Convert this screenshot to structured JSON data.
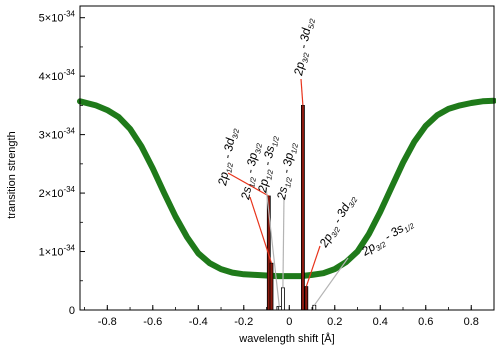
{
  "chart_data": {
    "type": "bar",
    "xlabel": "wavelength shift [Å]",
    "ylabel": "transition strength",
    "xlim": [
      -0.92,
      0.9
    ],
    "ylim": [
      0,
      5.2e-34
    ],
    "x_ticks": [
      -0.8,
      -0.6,
      -0.4,
      -0.2,
      0,
      0.2,
      0.4,
      0.6,
      0.8
    ],
    "x_tick_labels": [
      "-0.8",
      "-0.6",
      "-0.4",
      "-0.2",
      "0",
      "0.2",
      "0.4",
      "0.6",
      "0.8"
    ],
    "y_ticks": [
      0,
      1e-34,
      2e-34,
      3e-34,
      4e-34,
      5e-34
    ],
    "y_tick_labels": [
      {
        "mant": "0",
        "exp": ""
      },
      {
        "mant": "1×10",
        "exp": "-34"
      },
      {
        "mant": "2×10",
        "exp": "-34"
      },
      {
        "mant": "3×10",
        "exp": "-34"
      },
      {
        "mant": "4×10",
        "exp": "-34"
      },
      {
        "mant": "5×10",
        "exp": "-34"
      }
    ],
    "grid": false,
    "bars": [
      {
        "x": -0.09,
        "value": 1.95e-34,
        "color": "#8b1a0f"
      },
      {
        "x": -0.078,
        "value": 8e-35,
        "color": "#8b1a0f"
      },
      {
        "x": -0.048,
        "value": 6e-36,
        "color": "#ffffff"
      },
      {
        "x": -0.04,
        "value": 6e-36,
        "color": "#ffffff"
      },
      {
        "x": -0.028,
        "value": 3.8e-35,
        "color": "#ffffff"
      },
      {
        "x": 0.06,
        "value": 3.5e-34,
        "color": "#8b1a0f"
      },
      {
        "x": 0.075,
        "value": 4e-35,
        "color": "#8b1a0f"
      },
      {
        "x": 0.11,
        "value": 8e-36,
        "color": "#ffffff"
      }
    ],
    "envelope": {
      "color": "#1f7a1a",
      "x": [
        -0.92,
        -0.85,
        -0.8,
        -0.75,
        -0.7,
        -0.65,
        -0.6,
        -0.55,
        -0.5,
        -0.45,
        -0.4,
        -0.35,
        -0.3,
        -0.25,
        -0.2,
        -0.15,
        -0.1,
        -0.05,
        0.0,
        0.05,
        0.1,
        0.15,
        0.2,
        0.25,
        0.3,
        0.35,
        0.4,
        0.45,
        0.5,
        0.55,
        0.6,
        0.65,
        0.7,
        0.75,
        0.8,
        0.85,
        0.9
      ],
      "y": [
        3.57e-34,
        3.5e-34,
        3.42e-34,
        3.3e-34,
        3.1e-34,
        2.8e-34,
        2.42e-34,
        2e-34,
        1.6e-34,
        1.25e-34,
        9.7e-35,
        8e-35,
        7e-35,
        6.4e-35,
        6.1e-35,
        6e-35,
        5.9e-35,
        5.8e-35,
        5.8e-35,
        5.8e-35,
        6e-35,
        6.3e-35,
        7e-35,
        8.2e-35,
        1e-34,
        1.3e-34,
        1.68e-34,
        2.1e-34,
        2.52e-34,
        2.88e-34,
        3.15e-34,
        3.33e-34,
        3.44e-34,
        3.5e-34,
        3.54e-34,
        3.57e-34,
        3.58e-34
      ]
    },
    "annotations": [
      {
        "parts": [
          "2",
          "p",
          "1/2",
          " - 3",
          "d",
          "3/2"
        ],
        "target": {
          "x": -0.09,
          "y": 1.95e-34
        },
        "line_color": "#e8341c"
      },
      {
        "parts": [
          "2",
          "s",
          "1/2",
          " - 3",
          "p",
          "3/2"
        ],
        "target": {
          "x": -0.078,
          "y": 8e-35
        },
        "line_color": "#e8341c"
      },
      {
        "parts": [
          "2",
          "p",
          "1/2",
          " - 3",
          "s",
          "1/2"
        ],
        "target": {
          "x": -0.044,
          "y": 6e-36
        },
        "line_color": "#b4b4b4"
      },
      {
        "parts": [
          "2",
          "s",
          "1/2",
          " - 3",
          "p",
          "1/2"
        ],
        "target": {
          "x": -0.028,
          "y": 3.8e-35
        },
        "line_color": "#b4b4b4"
      },
      {
        "parts": [
          "2",
          "p",
          "3/2",
          " - 3",
          "d",
          "5/2"
        ],
        "target": {
          "x": 0.06,
          "y": 3.5e-34
        },
        "line_color": "#e8341c"
      },
      {
        "parts": [
          "2",
          "p",
          "3/2",
          " - 3",
          "d",
          "3/2"
        ],
        "target": {
          "x": 0.075,
          "y": 4e-35
        },
        "line_color": "#e8341c"
      },
      {
        "parts": [
          "2",
          "p",
          "3/2",
          " - 3",
          "s",
          "1/2"
        ],
        "target": {
          "x": 0.11,
          "y": 8e-36
        },
        "line_color": "#b4b4b4"
      }
    ]
  }
}
